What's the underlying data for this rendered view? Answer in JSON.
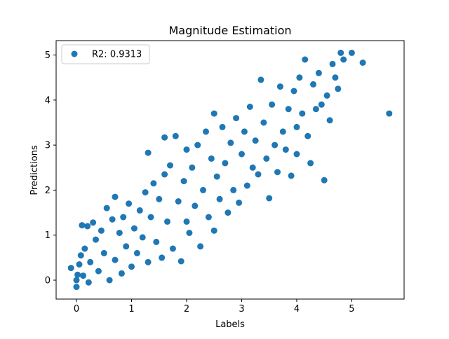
{
  "chart_data": {
    "type": "scatter",
    "title": "Magnitude Estimation",
    "xlabel": "Labels",
    "ylabel": "Predictions",
    "xlim": [
      -0.37,
      5.95
    ],
    "ylim": [
      -0.42,
      5.32
    ],
    "xticks": [
      0,
      1,
      2,
      3,
      4,
      5
    ],
    "yticks": [
      0,
      1,
      2,
      3,
      4,
      5
    ],
    "grid": false,
    "legend": {
      "placement": "top-left",
      "entries": [
        "R2: 0.9313"
      ]
    },
    "series": [
      {
        "name": "R2: 0.9313",
        "color": "#1f77b4",
        "points": [
          [
            -0.1,
            0.27
          ],
          [
            0.0,
            -0.15
          ],
          [
            0.0,
            0.0
          ],
          [
            0.02,
            0.12
          ],
          [
            0.05,
            0.35
          ],
          [
            0.08,
            0.55
          ],
          [
            0.1,
            1.22
          ],
          [
            0.12,
            0.1
          ],
          [
            0.15,
            0.7
          ],
          [
            0.2,
            1.2
          ],
          [
            0.22,
            -0.05
          ],
          [
            0.25,
            0.4
          ],
          [
            0.3,
            1.28
          ],
          [
            0.35,
            0.9
          ],
          [
            0.4,
            0.2
          ],
          [
            0.45,
            1.1
          ],
          [
            0.5,
            0.6
          ],
          [
            0.55,
            1.6
          ],
          [
            0.6,
            0.0
          ],
          [
            0.65,
            1.35
          ],
          [
            0.7,
            0.45
          ],
          [
            0.7,
            1.85
          ],
          [
            0.78,
            1.05
          ],
          [
            0.82,
            0.15
          ],
          [
            0.85,
            1.4
          ],
          [
            0.9,
            0.75
          ],
          [
            0.95,
            1.7
          ],
          [
            1.0,
            0.3
          ],
          [
            1.05,
            1.15
          ],
          [
            1.1,
            0.6
          ],
          [
            1.15,
            1.55
          ],
          [
            1.2,
            0.95
          ],
          [
            1.25,
            1.95
          ],
          [
            1.3,
            2.83
          ],
          [
            1.3,
            0.4
          ],
          [
            1.35,
            1.4
          ],
          [
            1.4,
            2.15
          ],
          [
            1.45,
            0.85
          ],
          [
            1.5,
            1.8
          ],
          [
            1.55,
            0.5
          ],
          [
            1.6,
            2.35
          ],
          [
            1.6,
            3.17
          ],
          [
            1.65,
            1.3
          ],
          [
            1.7,
            2.55
          ],
          [
            1.75,
            0.7
          ],
          [
            1.8,
            3.2
          ],
          [
            1.85,
            1.75
          ],
          [
            1.9,
            0.42
          ],
          [
            1.95,
            2.2
          ],
          [
            2.0,
            2.9
          ],
          [
            2.0,
            1.3
          ],
          [
            2.05,
            1.05
          ],
          [
            2.1,
            2.5
          ],
          [
            2.15,
            1.65
          ],
          [
            2.2,
            3.0
          ],
          [
            2.25,
            0.75
          ],
          [
            2.3,
            2.0
          ],
          [
            2.35,
            3.3
          ],
          [
            2.4,
            1.4
          ],
          [
            2.45,
            2.7
          ],
          [
            2.5,
            3.7
          ],
          [
            2.5,
            1.1
          ],
          [
            2.55,
            2.3
          ],
          [
            2.6,
            1.8
          ],
          [
            2.65,
            3.4
          ],
          [
            2.7,
            2.6
          ],
          [
            2.75,
            1.5
          ],
          [
            2.8,
            3.05
          ],
          [
            2.85,
            2.0
          ],
          [
            2.9,
            3.6
          ],
          [
            2.95,
            1.72
          ],
          [
            3.0,
            2.8
          ],
          [
            3.05,
            3.3
          ],
          [
            3.1,
            2.1
          ],
          [
            3.15,
            3.85
          ],
          [
            3.2,
            2.5
          ],
          [
            3.25,
            3.1
          ],
          [
            3.3,
            2.35
          ],
          [
            3.35,
            4.45
          ],
          [
            3.4,
            3.5
          ],
          [
            3.45,
            2.7
          ],
          [
            3.5,
            1.82
          ],
          [
            3.55,
            3.9
          ],
          [
            3.6,
            3.0
          ],
          [
            3.65,
            2.4
          ],
          [
            3.7,
            4.3
          ],
          [
            3.75,
            3.3
          ],
          [
            3.8,
            2.9
          ],
          [
            3.85,
            3.8
          ],
          [
            3.9,
            2.32
          ],
          [
            3.95,
            4.2
          ],
          [
            4.0,
            3.4
          ],
          [
            4.0,
            2.8
          ],
          [
            4.05,
            4.5
          ],
          [
            4.1,
            3.7
          ],
          [
            4.15,
            4.9
          ],
          [
            4.2,
            3.2
          ],
          [
            4.25,
            2.6
          ],
          [
            4.3,
            4.35
          ],
          [
            4.35,
            3.8
          ],
          [
            4.4,
            4.6
          ],
          [
            4.45,
            3.9
          ],
          [
            4.5,
            2.22
          ],
          [
            4.55,
            4.1
          ],
          [
            4.6,
            3.55
          ],
          [
            4.65,
            4.8
          ],
          [
            4.7,
            4.5
          ],
          [
            4.75,
            4.25
          ],
          [
            4.8,
            5.05
          ],
          [
            4.85,
            4.9
          ],
          [
            5.0,
            5.05
          ],
          [
            5.2,
            4.83
          ],
          [
            5.68,
            3.7
          ]
        ]
      }
    ]
  }
}
